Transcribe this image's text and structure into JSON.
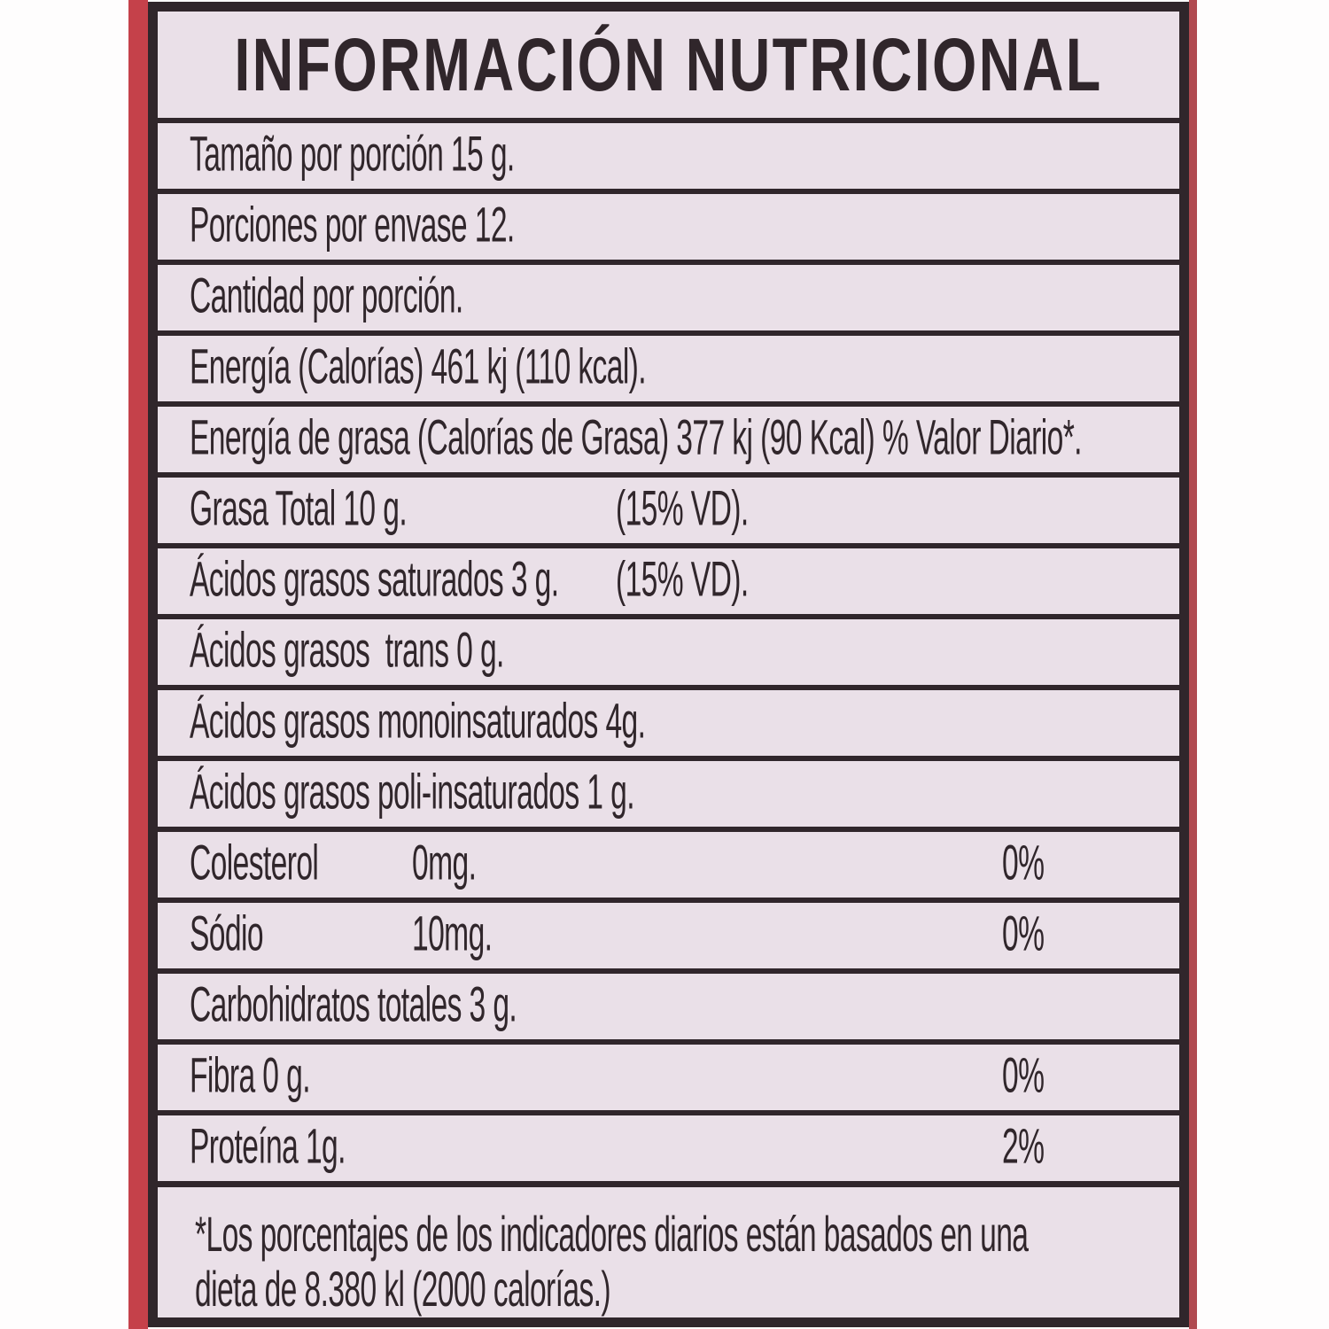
{
  "label": {
    "title": "INFORMACIÓN NUTRICIONAL",
    "rows": [
      {
        "text": "Tamaño por porción 15 g."
      },
      {
        "text": "Porciones por envase 12."
      },
      {
        "text": "Cantidad por porción."
      },
      {
        "text": "Energía (Calorías) 461 kj (110 kcal)."
      },
      {
        "text": "Energía de grasa (Calorías de Grasa) 377 kj (90 Kcal) % Valor Diario*."
      },
      {
        "text": "Grasa Total 10 g.",
        "mid": "(15% VD)."
      },
      {
        "text": "Ácidos grasos saturados 3 g.",
        "mid": "(15% VD)."
      },
      {
        "text": "Ácidos grasos  trans 0 g."
      },
      {
        "text": "Ácidos grasos monoinsaturados 4g."
      },
      {
        "text": "Ácidos grasos poli-insaturados 1 g."
      },
      {
        "text": "Colesterol",
        "value": "0mg.",
        "pct": "0%"
      },
      {
        "text": "Sódio",
        "value": "10mg.",
        "pct": "0%"
      },
      {
        "text": "Carbohidratos totales 3 g."
      },
      {
        "text": "Fibra 0 g.",
        "pct": "0%"
      },
      {
        "text": "Proteína 1g.",
        "pct": "2%"
      }
    ],
    "footnote_line1": "*Los porcentajes de los indicadores diarios están basados en una",
    "footnote_line2": "dieta de 8.380 kl (2000 calorías.)"
  },
  "colors": {
    "ink": "#30262b",
    "label-bg": "#eae0e8",
    "edge-left": "#c5414a",
    "edge-right": "#b04a50",
    "photo-bg": "#fefdfd"
  }
}
